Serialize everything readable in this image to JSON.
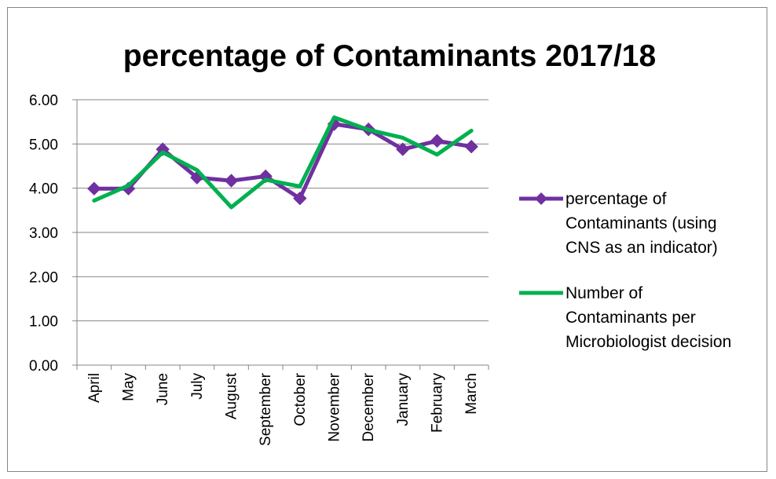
{
  "chart_data": {
    "type": "line",
    "title": "percentage of Contaminants 2017/18",
    "xlabel": "",
    "ylabel": "",
    "ylim": [
      0,
      6
    ],
    "yticks": [
      "0.00",
      "1.00",
      "2.00",
      "3.00",
      "4.00",
      "5.00",
      "6.00"
    ],
    "grid": true,
    "legend_position": "right",
    "categories": [
      "April",
      "May",
      "June",
      "July",
      "August",
      "September",
      "October",
      "November",
      "December",
      "January",
      "February",
      "March"
    ],
    "series": [
      {
        "name": "percentage of Contaminants (using CNS as an indicator)",
        "legend_lines": [
          "percentage of",
          "Contaminants (using",
          "CNS as an indicator)"
        ],
        "color": "#7030A0",
        "marker": "diamond",
        "values": [
          3.99,
          3.99,
          4.88,
          4.24,
          4.17,
          4.27,
          3.77,
          5.45,
          5.33,
          4.88,
          5.07,
          4.94
        ]
      },
      {
        "name": "Number of Contaminants per Microbiologist decision",
        "legend_lines": [
          "Number of",
          "Contaminants per",
          "Microbiologist decision"
        ],
        "color": "#00B050",
        "marker": "none",
        "values": [
          3.72,
          4.06,
          4.81,
          4.41,
          3.57,
          4.19,
          4.04,
          5.6,
          5.32,
          5.14,
          4.76,
          5.3
        ]
      }
    ]
  }
}
